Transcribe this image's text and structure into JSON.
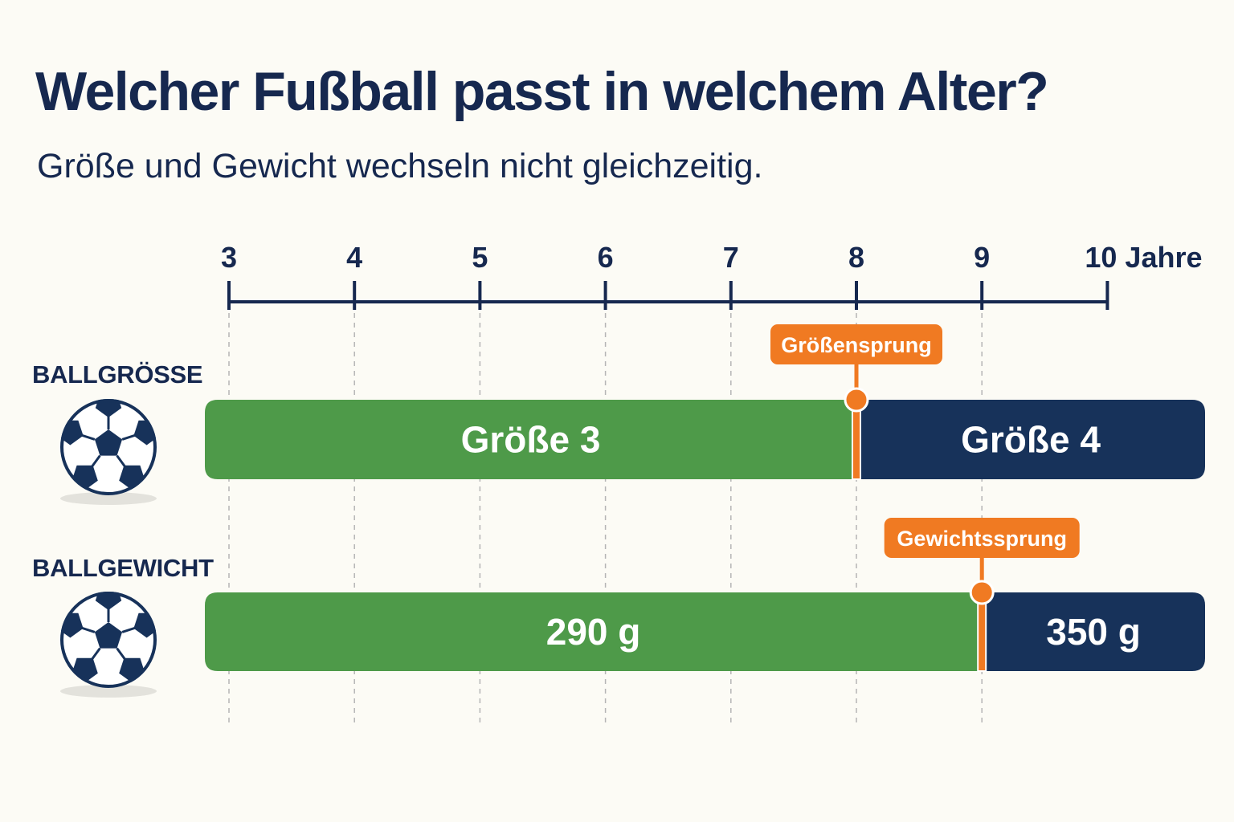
{
  "header": {
    "title": "Welcher Fußball passt in welchem Alter?",
    "subtitle": "Größe und Gewicht wechseln nicht gleichzeitig."
  },
  "chart_data": {
    "type": "timeline",
    "x": {
      "ticks": [
        3,
        4,
        5,
        6,
        7,
        8,
        9,
        10
      ],
      "tick_labels": [
        "3",
        "4",
        "5",
        "6",
        "7",
        "8",
        "9",
        "10 Jahre"
      ],
      "range": [
        2.8,
        10.7
      ]
    },
    "rows": [
      {
        "label": "BALLGRÖSSE",
        "icon": "soccer-ball-icon",
        "segments": [
          {
            "label": "Größe 3",
            "start": 2.8,
            "end": 8,
            "color": "#4e9a49"
          },
          {
            "label": "Größe 4",
            "start": 8,
            "end": 10.7,
            "color": "#17325a"
          }
        ],
        "marker": {
          "x": 8,
          "label": "Größensprung"
        }
      },
      {
        "label": "BALLGEWICHT",
        "icon": "soccer-ball-icon",
        "segments": [
          {
            "label": "290 g",
            "start": 2.8,
            "end": 9,
            "color": "#4e9a49"
          },
          {
            "label": "350 g",
            "start": 9,
            "end": 10.7,
            "color": "#17325a"
          }
        ],
        "marker": {
          "x": 9,
          "label": "Gewichtssprung"
        }
      }
    ],
    "colors": {
      "axis": "#16284f",
      "accent": "#f07a22",
      "grid": "#b5b5b5"
    }
  }
}
